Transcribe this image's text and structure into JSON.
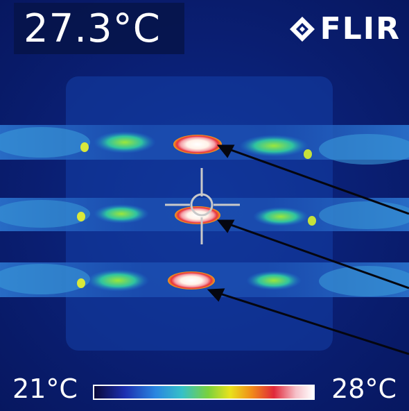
{
  "readout": {
    "spot_temperature": "27.3°C"
  },
  "brand": {
    "name": "FLIR",
    "logo_icon": "flir-diamond-logo"
  },
  "scale": {
    "min_label": "21°C",
    "max_label": "28°C",
    "palette": [
      "#0a0a3a",
      "#1d2fb0",
      "#2a86e0",
      "#35c0c8",
      "#7ad13c",
      "#e9e21c",
      "#f08a1a",
      "#e0283a",
      "#f6c0c8",
      "#ffffff"
    ]
  },
  "colors": {
    "background": "#0a1f73",
    "hot_spot": "#ffffff",
    "hot_ring": "#e8323c",
    "crosshair": "#c9c9c9",
    "arrow": "#05060f"
  }
}
